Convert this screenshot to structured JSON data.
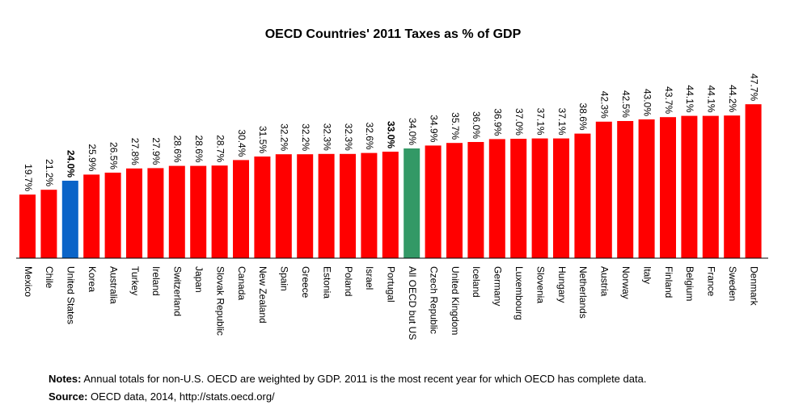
{
  "chart_data": {
    "type": "bar",
    "title": "OECD Countries' 2011 Taxes as % of GDP",
    "categories": [
      "Mexico",
      "Chile",
      "United States",
      "Korea",
      "Australia",
      "Turkey",
      "Ireland",
      "Switzerland",
      "Japan",
      "Slovak Republic",
      "Canada",
      "New Zealand",
      "Spain",
      "Greece",
      "Estonia",
      "Poland",
      "Israel",
      "Portugal",
      "All OECD but US",
      "Czech Republic",
      "United Kingdom",
      "Iceland",
      "Germany",
      "Luxembourg",
      "Slovenia",
      "Hungary",
      "Netherlands",
      "Austria",
      "Norway",
      "Italy",
      "Finland",
      "Belgium",
      "France",
      "Sweden",
      "Denmark"
    ],
    "values": [
      19.7,
      21.2,
      24.0,
      25.9,
      26.5,
      27.8,
      27.9,
      28.6,
      28.6,
      28.7,
      30.4,
      31.5,
      32.2,
      32.2,
      32.3,
      32.3,
      32.6,
      33.0,
      34.0,
      34.9,
      35.7,
      36.0,
      36.9,
      37.0,
      37.1,
      37.1,
      38.6,
      42.3,
      42.5,
      43.0,
      43.7,
      44.1,
      44.1,
      44.2,
      47.7
    ],
    "value_labels": [
      "19.7%",
      "21.2%",
      "24.0%",
      "25.9%",
      "26.5%",
      "27.8%",
      "27.9%",
      "28.6%",
      "28.6%",
      "28.7%",
      "30.4%",
      "31.5%",
      "32.2%",
      "32.2%",
      "32.3%",
      "32.3%",
      "32.6%",
      "33.0%",
      "34.0%",
      "34.9%",
      "35.7%",
      "36.0%",
      "36.9%",
      "37.0%",
      "37.1%",
      "37.1%",
      "38.6%",
      "42.3%",
      "42.5%",
      "43.0%",
      "43.7%",
      "44.1%",
      "44.1%",
      "44.2%",
      "47.7%"
    ],
    "bold_labels": [
      2,
      17
    ],
    "colors": {
      "default": "#ff0000",
      "highlight_us": "#0a64c8",
      "highlight_oecd": "#339966"
    },
    "highlight_us_index": 2,
    "highlight_oecd_index": 18,
    "ylim": [
      0,
      50
    ],
    "grid": false,
    "legend": "none"
  },
  "notes": {
    "notes_label": "Notes:",
    "notes_text": "Annual totals for non-U.S. OECD are weighted by GDP. 2011 is the most recent year for which OECD has complete data.",
    "source_label": "Source:",
    "source_text": "OECD data, 2014, http://stats.oecd.org/"
  }
}
